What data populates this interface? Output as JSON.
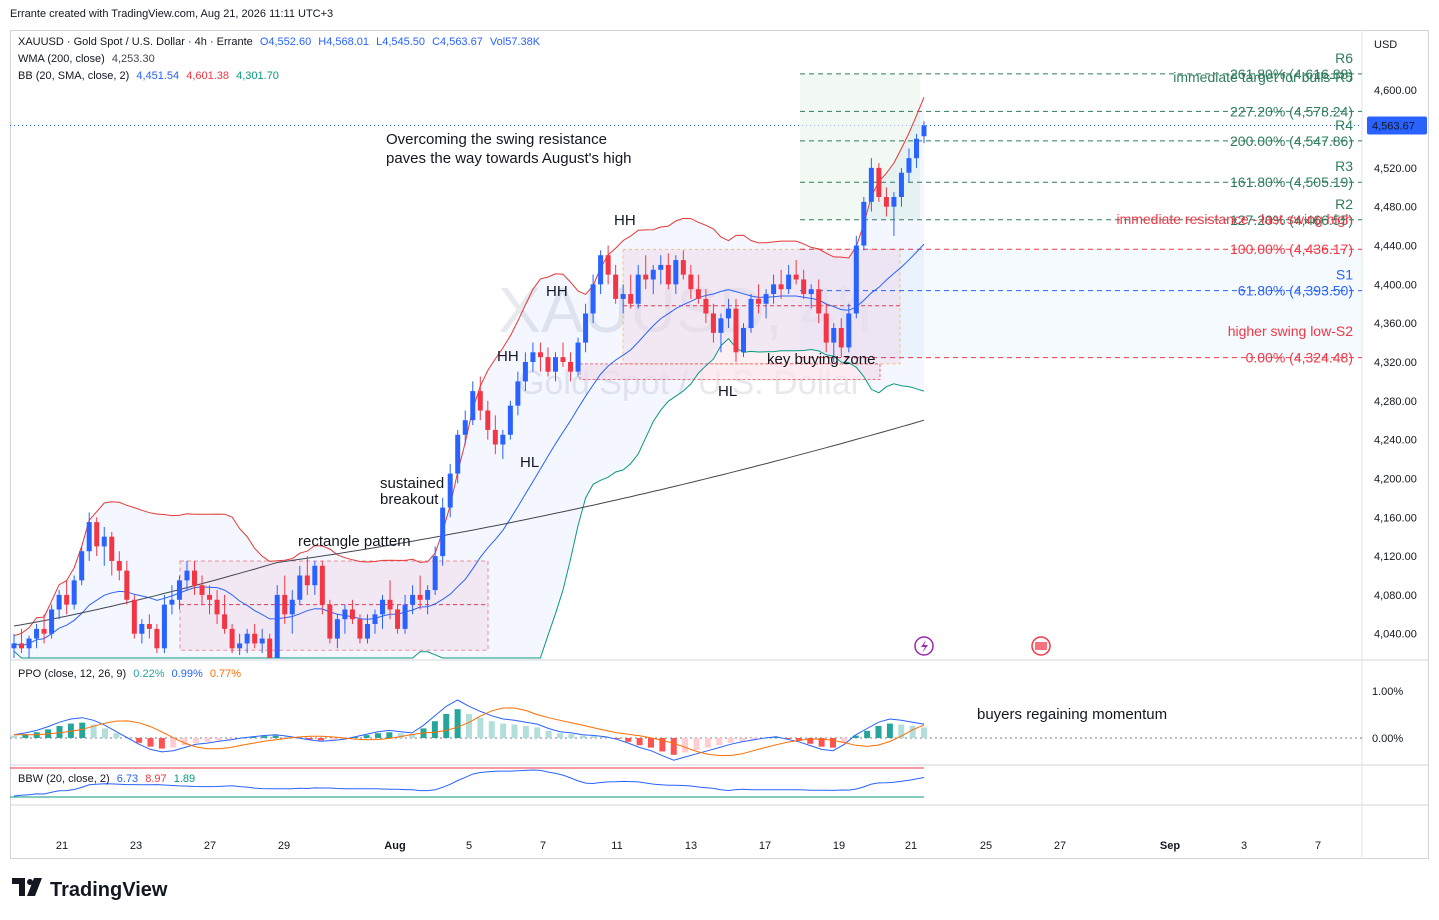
{
  "header": {
    "text": "Errante created with TradingView.com, Aug 21, 2026 11:11 UTC+3"
  },
  "legend": {
    "main": {
      "symbol": "XAUUSD · Gold Spot / U.S. Dollar · 4h · Errante",
      "o": "O4,552.60",
      "h": "H4,568.01",
      "l": "L4,545.50",
      "c": "C4,563.67",
      "vol": "Vol57.38K"
    },
    "wma": {
      "label": "WMA (200, close)",
      "value": "4,253.30"
    },
    "bb": {
      "label": "BB (20, SMA, close, 2)",
      "basis": "4,451.54",
      "upper": "4,601.38",
      "lower": "4,301.70"
    },
    "ppo": {
      "label": "PPO (close, 12, 26, 9)",
      "hist": "0.22%",
      "ppo": "0.99%",
      "signal": "0.77%"
    },
    "bbw": {
      "label": "BBW (20, close, 2)",
      "v1": "6.73",
      "v2": "8.97",
      "v3": "1.89"
    }
  },
  "watermark": {
    "symbol": "XAUUSD, 4h",
    "name": "Gold Spot / U.S. Dollar"
  },
  "currency": "USD",
  "colors": {
    "up": "#2962ff",
    "down": "#f23645",
    "green": "#2e7d5b",
    "fib_blue": "#2962ff",
    "fib_red": "#f23645",
    "bb_band": "#e53935",
    "bb_basis": "#2962ff",
    "bb_lower": "#089981",
    "wma": "#434651"
  },
  "chart_data": {
    "type": "candlestick",
    "price_axis": {
      "ticks": [
        "4,040.00",
        "4,080.00",
        "4,120.00",
        "4,160.00",
        "4,200.00",
        "4,240.00",
        "4,280.00",
        "4,320.00",
        "4,360.00",
        "4,400.00",
        "4,440.00",
        "4,480.00",
        "4,520.00",
        "4,560.00",
        "4,600.00"
      ],
      "last_price": "4,563.67",
      "ylim": [
        4015,
        4660
      ]
    },
    "time_axis": {
      "ticks": [
        "21",
        "23",
        "27",
        "29",
        "Aug",
        "5",
        "7",
        "11",
        "13",
        "17",
        "19",
        "21",
        "25",
        "27",
        "Sep",
        "3",
        "7"
      ]
    },
    "ohlc": [
      [
        4025,
        4040,
        4010,
        4030
      ],
      [
        4030,
        4045,
        4020,
        4025
      ],
      [
        4025,
        4038,
        4012,
        4035
      ],
      [
        4035,
        4050,
        4025,
        4045
      ],
      [
        4045,
        4060,
        4030,
        4040
      ],
      [
        4040,
        4070,
        4035,
        4065
      ],
      [
        4065,
        4085,
        4055,
        4080
      ],
      [
        4080,
        4095,
        4060,
        4070
      ],
      [
        4070,
        4100,
        4065,
        4095
      ],
      [
        4095,
        4130,
        4090,
        4125
      ],
      [
        4125,
        4165,
        4115,
        4155
      ],
      [
        4155,
        4160,
        4120,
        4130
      ],
      [
        4130,
        4150,
        4110,
        4140
      ],
      [
        4140,
        4145,
        4100,
        4115
      ],
      [
        4115,
        4125,
        4095,
        4105
      ],
      [
        4105,
        4115,
        4070,
        4075
      ],
      [
        4075,
        4080,
        4035,
        4040
      ],
      [
        4040,
        4055,
        4030,
        4050
      ],
      [
        4050,
        4060,
        4035,
        4045
      ],
      [
        4045,
        4050,
        4020,
        4025
      ],
      [
        4025,
        4080,
        4020,
        4070
      ],
      [
        4070,
        4090,
        4060,
        4075
      ],
      [
        4075,
        4100,
        4065,
        4095
      ],
      [
        4095,
        4115,
        4085,
        4105
      ],
      [
        4105,
        4115,
        4080,
        4090
      ],
      [
        4090,
        4100,
        4070,
        4080
      ],
      [
        4080,
        4090,
        4060,
        4075
      ],
      [
        4075,
        4085,
        4050,
        4060
      ],
      [
        4060,
        4080,
        4040,
        4045
      ],
      [
        4045,
        4050,
        4020,
        4025
      ],
      [
        4025,
        4040,
        4018,
        4030
      ],
      [
        4030,
        4045,
        4020,
        4040
      ],
      [
        4040,
        4050,
        4025,
        4030
      ],
      [
        4030,
        4045,
        4020,
        4035
      ],
      [
        4035,
        4040,
        4010,
        4015
      ],
      [
        4015,
        4090,
        4010,
        4080
      ],
      [
        4080,
        4100,
        4050,
        4060
      ],
      [
        4060,
        4085,
        4040,
        4075
      ],
      [
        4075,
        4110,
        4070,
        4100
      ],
      [
        4100,
        4120,
        4080,
        4090
      ],
      [
        4090,
        4115,
        4080,
        4110
      ],
      [
        4110,
        4115,
        4060,
        4070
      ],
      [
        4070,
        4075,
        4030,
        4035
      ],
      [
        4035,
        4060,
        4025,
        4055
      ],
      [
        4055,
        4070,
        4040,
        4065
      ],
      [
        4065,
        4075,
        4050,
        4055
      ],
      [
        4055,
        4060,
        4030,
        4035
      ],
      [
        4035,
        4060,
        4030,
        4050
      ],
      [
        4050,
        4065,
        4040,
        4060
      ],
      [
        4060,
        4080,
        4045,
        4075
      ],
      [
        4075,
        4095,
        4055,
        4065
      ],
      [
        4065,
        4070,
        4040,
        4045
      ],
      [
        4045,
        4080,
        4040,
        4070
      ],
      [
        4070,
        4090,
        4060,
        4080
      ],
      [
        4080,
        4100,
        4065,
        4075
      ],
      [
        4075,
        4090,
        4060,
        4085
      ],
      [
        4085,
        4130,
        4080,
        4120
      ],
      [
        4120,
        4180,
        4110,
        4170
      ],
      [
        4170,
        4215,
        4160,
        4205
      ],
      [
        4205,
        4250,
        4195,
        4245
      ],
      [
        4245,
        4270,
        4235,
        4260
      ],
      [
        4260,
        4300,
        4255,
        4290
      ],
      [
        4290,
        4305,
        4260,
        4270
      ],
      [
        4270,
        4280,
        4240,
        4250
      ],
      [
        4250,
        4265,
        4225,
        4235
      ],
      [
        4235,
        4250,
        4220,
        4245
      ],
      [
        4245,
        4280,
        4240,
        4275
      ],
      [
        4275,
        4310,
        4265,
        4300
      ],
      [
        4300,
        4330,
        4290,
        4320
      ],
      [
        4320,
        4340,
        4310,
        4330
      ],
      [
        4330,
        4340,
        4310,
        4325
      ],
      [
        4325,
        4335,
        4305,
        4310
      ],
      [
        4310,
        4330,
        4300,
        4325
      ],
      [
        4325,
        4340,
        4315,
        4320
      ],
      [
        4320,
        4330,
        4300,
        4310
      ],
      [
        4310,
        4345,
        4305,
        4340
      ],
      [
        4340,
        4380,
        4330,
        4370
      ],
      [
        4370,
        4410,
        4360,
        4400
      ],
      [
        4400,
        4435,
        4390,
        4430
      ],
      [
        4430,
        4440,
        4400,
        4410
      ],
      [
        4410,
        4420,
        4380,
        4385
      ],
      [
        4385,
        4400,
        4370,
        4390
      ],
      [
        4390,
        4410,
        4375,
        4380
      ],
      [
        4380,
        4420,
        4375,
        4410
      ],
      [
        4410,
        4430,
        4395,
        4405
      ],
      [
        4405,
        4420,
        4390,
        4415
      ],
      [
        4415,
        4430,
        4400,
        4420
      ],
      [
        4420,
        4432,
        4395,
        4400
      ],
      [
        4400,
        4430,
        4390,
        4425
      ],
      [
        4425,
        4435,
        4405,
        4410
      ],
      [
        4410,
        4420,
        4385,
        4395
      ],
      [
        4395,
        4410,
        4380,
        4385
      ],
      [
        4385,
        4395,
        4360,
        4370
      ],
      [
        4370,
        4380,
        4340,
        4350
      ],
      [
        4350,
        4370,
        4330,
        4365
      ],
      [
        4365,
        4385,
        4355,
        4375
      ],
      [
        4375,
        4385,
        4320,
        4330
      ],
      [
        4330,
        4360,
        4325,
        4355
      ],
      [
        4355,
        4390,
        4350,
        4385
      ],
      [
        4385,
        4400,
        4370,
        4380
      ],
      [
        4380,
        4395,
        4365,
        4390
      ],
      [
        4390,
        4410,
        4380,
        4400
      ],
      [
        4400,
        4415,
        4385,
        4395
      ],
      [
        4395,
        4420,
        4390,
        4410
      ],
      [
        4410,
        4425,
        4400,
        4405
      ],
      [
        4405,
        4415,
        4385,
        4390
      ],
      [
        4390,
        4400,
        4375,
        4395
      ],
      [
        4395,
        4405,
        4360,
        4370
      ],
      [
        4370,
        4380,
        4330,
        4340
      ],
      [
        4340,
        4360,
        4320,
        4355
      ],
      [
        4355,
        4365,
        4325,
        4335
      ],
      [
        4335,
        4380,
        4330,
        4370
      ],
      [
        4370,
        4450,
        4365,
        4440
      ],
      [
        4440,
        4490,
        4435,
        4485
      ],
      [
        4485,
        4530,
        4475,
        4520
      ],
      [
        4520,
        4525,
        4485,
        4490
      ],
      [
        4490,
        4500,
        4470,
        4480
      ],
      [
        4480,
        4495,
        4450,
        4490
      ],
      [
        4490,
        4520,
        4480,
        4515
      ],
      [
        4515,
        4540,
        4505,
        4530
      ],
      [
        4530,
        4555,
        4520,
        4550
      ],
      [
        4552.6,
        4568.01,
        4545.5,
        4563.67
      ]
    ],
    "overlays": {
      "wma_200": "4,253.30",
      "bb_basis": "4,451.54",
      "bb_upper": "4,601.38",
      "bb_lower": "4,301.70"
    },
    "fibonacci": [
      {
        "level": "261.80%",
        "price": "4,616.88",
        "pivot": "R6",
        "color": "#2e7d5b"
      },
      {
        "level": "227.20%",
        "price": "4,578.24",
        "pivot": "",
        "color": "#2e7d5b"
      },
      {
        "level": "200.00%",
        "price": "4,547.86",
        "pivot": "R4",
        "color": "#2e7d5b"
      },
      {
        "level": "161.80%",
        "price": "4,505.19",
        "pivot": "R3",
        "color": "#2e7d5b"
      },
      {
        "level": "127.20%",
        "price": "4,466.55",
        "pivot": "R2",
        "color": "#2e7d5b"
      },
      {
        "level": "100.00%",
        "price": "4,436.17",
        "pivot": "",
        "color": "#f23645"
      },
      {
        "level": "61.80%",
        "price": "4,393.50",
        "pivot": "S1",
        "color": "#2962ff"
      },
      {
        "level": "0.00%",
        "price": "4,324.48",
        "pivot": "",
        "color": "#f23645"
      }
    ],
    "ppo_axis": {
      "ticks": [
        "1.00%",
        "0.00%"
      ]
    },
    "ppo_hist": [
      0.05,
      0.08,
      0.12,
      0.18,
      0.25,
      0.3,
      0.32,
      0.28,
      0.2,
      0.1,
      0.0,
      -0.1,
      -0.18,
      -0.22,
      -0.2,
      -0.15,
      -0.1,
      -0.08,
      -0.05,
      -0.03,
      0.0,
      0.02,
      0.04,
      0.05,
      0.03,
      0.0,
      -0.03,
      -0.05,
      -0.04,
      -0.02,
      0.02,
      0.06,
      0.1,
      0.12,
      0.1,
      0.08,
      0.2,
      0.35,
      0.5,
      0.6,
      0.5,
      0.42,
      0.35,
      0.3,
      0.28,
      0.25,
      0.22,
      0.15,
      0.1,
      0.08,
      0.05,
      0.04,
      0.02,
      -0.02,
      -0.08,
      -0.15,
      -0.2,
      -0.28,
      -0.35,
      -0.3,
      -0.25,
      -0.2,
      -0.15,
      -0.1,
      -0.06,
      -0.03,
      0.0,
      0.02,
      -0.02,
      -0.06,
      -0.12,
      -0.18,
      -0.2,
      -0.1,
      0.05,
      0.15,
      0.25,
      0.3,
      0.28,
      0.25,
      0.22
    ]
  },
  "annotations": {
    "title_l1": "Overcoming the swing resistance",
    "title_l2": "paves the way towards August's high",
    "hh1": "HH",
    "hh2": "HH",
    "hh3": "HH",
    "hl1": "HL",
    "hl2": "HL",
    "breakout_l1": "sustained",
    "breakout_l2": "breakout",
    "rectangle": "rectangle pattern",
    "buying_zone": "key buying zone",
    "target": "immediate target for bulls-R5",
    "resistance": "immediate resistance - last swing high",
    "swing_low": "higher swing low-S2",
    "momentum": "buyers regaining momentum"
  },
  "brand": "TradingView"
}
